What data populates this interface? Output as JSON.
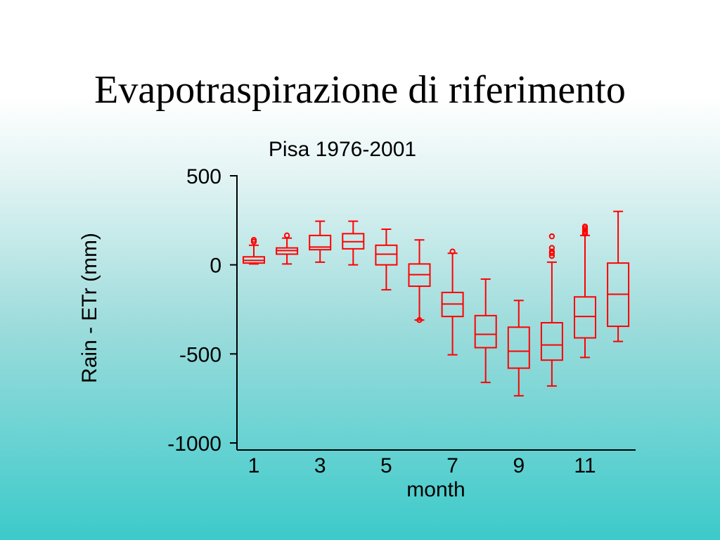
{
  "slide": {
    "title": "Evapotraspirazione di riferimento"
  },
  "chart_data": {
    "type": "boxplot",
    "title": "Pisa 1976-2001",
    "xlabel": "month",
    "ylabel": "Rain - ETr (mm)",
    "ylim": [
      -1030,
      500
    ],
    "xlim": [
      0.5,
      12.5
    ],
    "yticks": [
      500,
      0,
      -500,
      -1000
    ],
    "xticks": [
      1,
      3,
      5,
      7,
      9,
      11
    ],
    "grid": false,
    "color": "#ff0000",
    "series": [
      {
        "month": 1,
        "whisker_low": 5,
        "q1": 10,
        "median": 25,
        "q3": 45,
        "whisker_high": 110,
        "outliers": [
          130,
          140
        ]
      },
      {
        "month": 2,
        "whisker_low": 5,
        "q1": 60,
        "median": 80,
        "q3": 95,
        "whisker_high": 150,
        "outliers": [
          165
        ]
      },
      {
        "month": 3,
        "whisker_low": 15,
        "q1": 85,
        "median": 100,
        "q3": 165,
        "whisker_high": 245,
        "outliers": []
      },
      {
        "month": 4,
        "whisker_low": 0,
        "q1": 90,
        "median": 130,
        "q3": 175,
        "whisker_high": 245,
        "outliers": []
      },
      {
        "month": 5,
        "whisker_low": -140,
        "q1": 0,
        "median": 60,
        "q3": 110,
        "whisker_high": 200,
        "outliers": []
      },
      {
        "month": 6,
        "whisker_low": -310,
        "q1": -120,
        "median": -55,
        "q3": 5,
        "whisker_high": 140,
        "outliers": [
          -310
        ]
      },
      {
        "month": 7,
        "whisker_low": -505,
        "q1": -290,
        "median": -220,
        "q3": -155,
        "whisker_high": 65,
        "outliers": [
          75
        ]
      },
      {
        "month": 8,
        "whisker_low": -660,
        "q1": -465,
        "median": -390,
        "q3": -285,
        "whisker_high": -80,
        "outliers": []
      },
      {
        "month": 9,
        "whisker_low": -735,
        "q1": -580,
        "median": -485,
        "q3": -350,
        "whisker_high": -200,
        "outliers": []
      },
      {
        "month": 10,
        "whisker_low": -680,
        "q1": -535,
        "median": -450,
        "q3": -325,
        "whisker_high": 15,
        "outliers": [
          50,
          65,
          75,
          95,
          160
        ]
      },
      {
        "month": 11,
        "whisker_low": -520,
        "q1": -410,
        "median": -290,
        "q3": -180,
        "whisker_high": 165,
        "outliers": [
          175,
          185,
          195,
          205,
          215
        ]
      },
      {
        "month": 12,
        "whisker_low": -430,
        "q1": -345,
        "median": -165,
        "q3": 10,
        "whisker_high": 300,
        "outliers": []
      }
    ]
  }
}
